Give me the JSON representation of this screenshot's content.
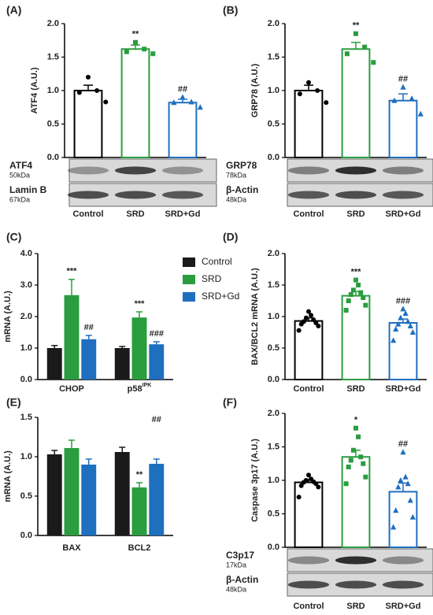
{
  "chart_data": [
    {
      "type": "bar",
      "label": "(A)",
      "ylabel": "ATF4 (A.U.)",
      "categories": [
        "Control",
        "SRD",
        "SRD+Gd"
      ],
      "values": [
        1.0,
        1.62,
        0.82
      ],
      "errors": [
        0.08,
        0.06,
        0.05
      ],
      "points": [
        [
          1.2,
          1.0,
          0.97,
          0.83
        ],
        [
          1.72,
          1.62,
          1.58,
          1.55
        ],
        [
          0.9,
          0.83,
          0.82,
          0.75
        ]
      ],
      "colors": [
        "#000000",
        "#2a9d3f",
        "#1f6fbf"
      ],
      "markers": [
        "circle",
        "square",
        "triangle"
      ],
      "ylim": [
        0,
        2.0
      ],
      "yticks": [
        {
          "value": 0,
          "label": "0.0"
        },
        {
          "value": 0.5,
          "label": "0.5"
        },
        {
          "value": 1.0,
          "label": "1.0"
        },
        {
          "value": 1.5,
          "label": "1.5"
        },
        {
          "value": 2.0,
          "label": "2.0"
        }
      ],
      "annotations": [
        {
          "text": "**",
          "index": 1
        },
        {
          "text": "##",
          "index": 2
        }
      ],
      "blot": [
        {
          "protein": "ATF4",
          "size": "50kDa"
        },
        {
          "protein": "Lamin B",
          "size": "67kDa"
        }
      ]
    },
    {
      "type": "bar",
      "label": "(B)",
      "ylabel": "GRP78 (A.U.)",
      "categories": [
        "Control",
        "SRD",
        "SRD+Gd"
      ],
      "values": [
        1.0,
        1.62,
        0.85
      ],
      "errors": [
        0.08,
        0.1,
        0.1
      ],
      "points": [
        [
          1.12,
          1.0,
          0.95,
          0.82
        ],
        [
          1.85,
          1.65,
          1.55,
          1.42
        ],
        [
          1.05,
          0.88,
          0.85,
          0.65
        ]
      ],
      "colors": [
        "#000000",
        "#2a9d3f",
        "#1f6fbf"
      ],
      "markers": [
        "circle",
        "square",
        "triangle"
      ],
      "ylim": [
        0,
        2.0
      ],
      "yticks": [
        {
          "value": 0,
          "label": "0.0"
        },
        {
          "value": 0.5,
          "label": "0.5"
        },
        {
          "value": 1.0,
          "label": "1.0"
        },
        {
          "value": 1.5,
          "label": "1.5"
        },
        {
          "value": 2.0,
          "label": "2.0"
        }
      ],
      "annotations": [
        {
          "text": "**",
          "index": 1
        },
        {
          "text": "##",
          "index": 2
        }
      ],
      "blot": [
        {
          "protein": "GRP78",
          "size": "78kDa"
        },
        {
          "protein": "β-Actin",
          "size": "48kDa"
        }
      ]
    },
    {
      "type": "grouped_bar",
      "label": "(C)",
      "ylabel": "mRNA (A.U.)",
      "categories": [
        "CHOP",
        "p58"
      ],
      "superscripts": [
        null,
        "IPK"
      ],
      "series": [
        {
          "name": "Control",
          "color": "#1a1a1a",
          "values": [
            1.0,
            1.0
          ],
          "errors": [
            0.08,
            0.05
          ]
        },
        {
          "name": "SRD",
          "color": "#2a9d3f",
          "values": [
            2.68,
            1.97
          ],
          "errors": [
            0.5,
            0.18
          ]
        },
        {
          "name": "SRD+Gd",
          "color": "#1f6fbf",
          "values": [
            1.28,
            1.12
          ],
          "errors": [
            0.12,
            0.08
          ]
        }
      ],
      "ylim": [
        0,
        4.0
      ],
      "yticks": [
        {
          "value": 0,
          "label": "0.0"
        },
        {
          "value": 1.0,
          "label": "1.0"
        },
        {
          "value": 2.0,
          "label": "2.0"
        },
        {
          "value": 3.0,
          "label": "3.0"
        },
        {
          "value": 4.0,
          "label": "4.0"
        }
      ],
      "annotations": [
        {
          "text": "***",
          "series": 1,
          "index": 0
        },
        {
          "text": "##",
          "series": 2,
          "index": 0
        },
        {
          "text": "***",
          "series": 1,
          "index": 1
        },
        {
          "text": "###",
          "series": 2,
          "index": 1
        }
      ],
      "legend": "right"
    },
    {
      "type": "bar",
      "label": "(D)",
      "ylabel": "BAX/BCL2 mRNA (A.U.)",
      "categories": [
        "Control",
        "SRD",
        "SRD+Gd"
      ],
      "values": [
        0.93,
        1.33,
        0.9
      ],
      "errors": [
        0.05,
        0.07,
        0.06
      ],
      "points": [
        [
          1.08,
          1.02,
          0.98,
          0.95,
          0.92,
          0.9,
          0.88,
          0.85,
          0.78
        ],
        [
          1.58,
          1.5,
          1.42,
          1.38,
          1.35,
          1.3,
          1.25,
          1.18,
          1.1
        ],
        [
          1.12,
          1.05,
          0.98,
          0.92,
          0.88,
          0.85,
          0.8,
          0.75,
          0.62
        ]
      ],
      "colors": [
        "#000000",
        "#2a9d3f",
        "#1f6fbf"
      ],
      "markers": [
        "circle",
        "square",
        "triangle"
      ],
      "ylim": [
        0,
        2.0
      ],
      "yticks": [
        {
          "value": 0,
          "label": "0.0"
        },
        {
          "value": 0.5,
          "label": "0.5"
        },
        {
          "value": 1.0,
          "label": "1.0"
        },
        {
          "value": 1.5,
          "label": "1.5"
        },
        {
          "value": 2.0,
          "label": "2.0"
        }
      ],
      "annotations": [
        {
          "text": "***",
          "index": 1
        },
        {
          "text": "###",
          "index": 2
        }
      ]
    },
    {
      "type": "grouped_bar",
      "label": "(E)",
      "ylabel": "mRNA (A.U.)",
      "categories": [
        "BAX",
        "BCL2"
      ],
      "series": [
        {
          "name": "Control",
          "color": "#1a1a1a",
          "values": [
            1.03,
            1.06
          ],
          "errors": [
            0.05,
            0.06
          ]
        },
        {
          "name": "SRD",
          "color": "#2a9d3f",
          "values": [
            1.11,
            0.61
          ],
          "errors": [
            0.1,
            0.06
          ]
        },
        {
          "name": "SRD+Gd",
          "color": "#1f6fbf",
          "values": [
            0.9,
            0.91
          ],
          "errors": [
            0.07,
            0.06
          ]
        }
      ],
      "ylim": [
        0,
        1.5
      ],
      "yticks": [
        {
          "value": 0,
          "label": "0.0"
        },
        {
          "value": 0.5,
          "label": "0.5"
        },
        {
          "value": 1.0,
          "label": "1.0"
        },
        {
          "value": 1.5,
          "label": "1.5"
        }
      ],
      "annotations": [
        {
          "text": "**",
          "series": 1,
          "index": 1
        },
        {
          "text": "##",
          "series": 2,
          "index": 1
        }
      ]
    },
    {
      "type": "bar",
      "label": "(F)",
      "ylabel": "Caspase 3p17 (A.U.)",
      "categories": [
        "Control",
        "SRD",
        "SRD+Gd"
      ],
      "values": [
        0.97,
        1.35,
        0.83
      ],
      "errors": [
        0.04,
        0.1,
        0.13
      ],
      "points": [
        [
          1.08,
          1.02,
          1.0,
          0.98,
          0.97,
          0.95,
          0.92,
          0.9,
          0.75
        ],
        [
          1.78,
          1.65,
          1.45,
          1.35,
          1.3,
          1.25,
          1.2,
          1.05,
          0.95
        ],
        [
          1.42,
          1.05,
          1.0,
          0.95,
          0.9,
          0.7,
          0.55,
          0.45,
          0.3
        ]
      ],
      "colors": [
        "#000000",
        "#2a9d3f",
        "#1f6fbf"
      ],
      "markers": [
        "circle",
        "square",
        "triangle"
      ],
      "ylim": [
        0,
        2.0
      ],
      "yticks": [
        {
          "value": 0,
          "label": "0.0"
        },
        {
          "value": 0.5,
          "label": "0.5"
        },
        {
          "value": 1.0,
          "label": "1.0"
        },
        {
          "value": 1.5,
          "label": "1.5"
        },
        {
          "value": 2.0,
          "label": "2.0"
        }
      ],
      "annotations": [
        {
          "text": "*",
          "index": 1
        },
        {
          "text": "##",
          "index": 2
        }
      ],
      "blot": [
        {
          "protein": "C3p17",
          "size": "17kDa"
        },
        {
          "protein": "β-Actin",
          "size": "48kDa"
        }
      ]
    }
  ]
}
